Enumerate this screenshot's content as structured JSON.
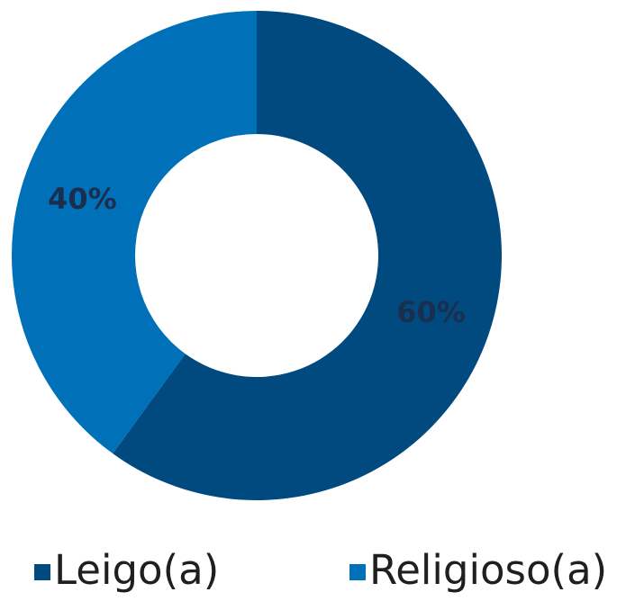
{
  "chart_data": {
    "type": "pie",
    "variant": "donut",
    "title": "",
    "slices": [
      {
        "name": "Leigo(a)",
        "value": 60,
        "label": "60%",
        "color": "#004a80"
      },
      {
        "name": "Religioso(a)",
        "value": 40,
        "label": "40%",
        "color": "#0070b8"
      }
    ],
    "start_angle_deg": 0,
    "direction": "clockwise",
    "legend_position": "bottom"
  },
  "legend": {
    "items": [
      {
        "label": "Leigo(a)",
        "color": "#004a80"
      },
      {
        "label": "Religioso(a)",
        "color": "#0070b8"
      }
    ]
  }
}
